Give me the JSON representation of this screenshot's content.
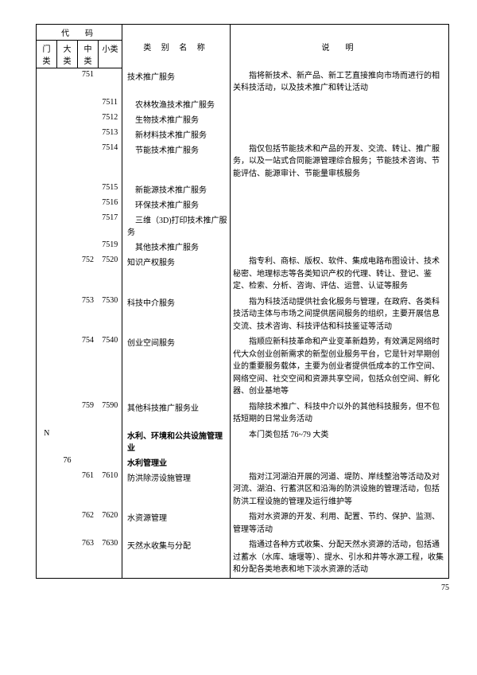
{
  "header": {
    "code_group": "代　码",
    "cat_name": "类 别 名 称",
    "desc": "说　明",
    "c1": "门类",
    "c2": "大类",
    "c3": "中类",
    "c4": "小类"
  },
  "col_widths": {
    "c1": 26,
    "c2": 26,
    "c3": 26,
    "c4": 30,
    "name": 136,
    "desc": "auto"
  },
  "rows": [
    {
      "c3": "751",
      "name": "技术推广服务",
      "desc": "指将新技术、新产品、新工艺直接推向市场而进行的相关科技活动，以及技术推广和转让活动"
    },
    {
      "c4": "7511",
      "name": "　农林牧渔技术推广服务"
    },
    {
      "c4": "7512",
      "name": "　生物技术推广服务"
    },
    {
      "c4": "7513",
      "name": "　新材料技术推广服务"
    },
    {
      "c4": "7514",
      "name": "　节能技术推广服务",
      "desc": "指仅包括节能技术和产品的开发、交流、转让、推广服务，以及一站式合同能源管理综合服务；节能技术咨询、节能评估、能源审计、节能量审核服务"
    },
    {
      "c4": "7515",
      "name": "　新能源技术推广服务"
    },
    {
      "c4": "7516",
      "name": "　环保技术推广服务"
    },
    {
      "c4": "7517",
      "name": "　三维（3D)打印技术推广服务"
    },
    {
      "c4": "7519",
      "name": "　其他技术推广服务"
    },
    {
      "c3": "752",
      "c4": "7520",
      "name": "知识产权服务",
      "desc": "指专利、商标、版权、软件、集成电路布图设计、技术秘密、地理标志等各类知识产权的代理、转让、登记、鉴定、检索、分析、咨询、评估、运营、认证等服务"
    },
    {
      "c3": "753",
      "c4": "7530",
      "name": "科技中介服务",
      "desc": "指为科技活动提供社会化服务与管理，在政府、各类科技活动主体与市场之间提供居间服务的组织，主要开展信息交流、技术咨询、科技评估和科技鉴证等活动"
    },
    {
      "c3": "754",
      "c4": "7540",
      "name": "创业空间服务",
      "desc": "指顺应新科技革命和产业变革新趋势，有效满足网络时代大众创业创新需求的新型创业服务平台，它是针对早期创业的重要服务载体，主要为创业者提供低成本的工作空间、网络空间、社交空间和资源共享空间，包括众创空间、孵化器、创业基地等"
    },
    {
      "c3": "759",
      "c4": "7590",
      "name": "其他科技推广服务业",
      "desc": "指除技术推广、科技中介以外的其他科技服务，但不包括短期的日常业务活动"
    },
    {
      "c1": "N",
      "name": "水利、环境和公共设施管理业",
      "bold": true,
      "desc": "本门类包括 76~79 大类"
    },
    {
      "c2": "76",
      "name": "水利管理业",
      "bold": true
    },
    {
      "c3": "761",
      "c4": "7610",
      "name": "防洪除涝设施管理",
      "desc": "指对江河湖泊开展的河道、堤防、岸线整治等活动及对河流、湖泊、行蓄洪区和沿海的防洪设施的管理活动，包括防洪工程设施的管理及运行维护等"
    },
    {
      "c3": "762",
      "c4": "7620",
      "name": "水资源管理",
      "desc": "指对水资源的开发、利用、配置、节约、保护、监测、管理等活动"
    },
    {
      "c3": "763",
      "c4": "7630",
      "name": "天然水收集与分配",
      "desc": "指通过各种方式收集、分配天然水资源的活动，包括通过蓄水（水库、塘堰等）、提水、引水和井等水源工程，收集和分配各类地表和地下淡水资源的活动"
    }
  ],
  "page": "75"
}
